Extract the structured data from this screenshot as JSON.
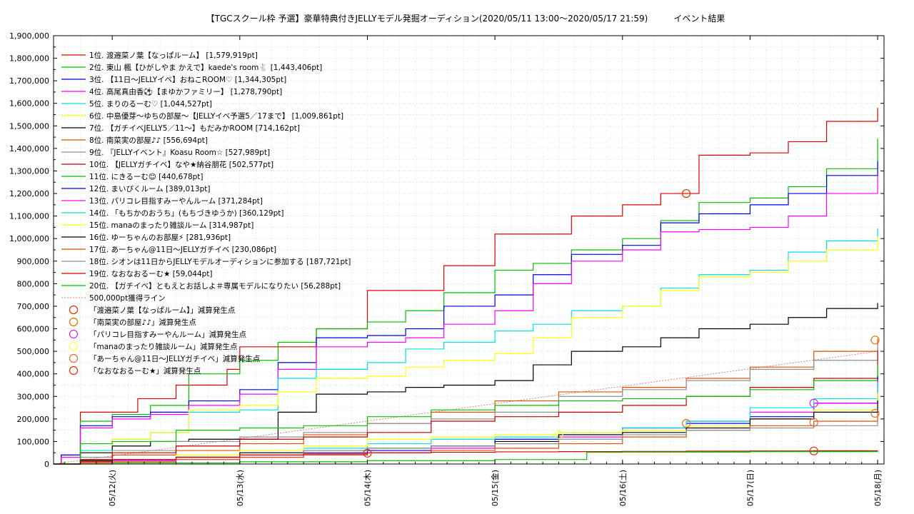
{
  "chart_data": {
    "type": "line",
    "title": "【TGCスクール枠 予選】豪華特典付きJELLYモデル発掘オーディション(2020/05/11 13:00〜2020/05/17 21:59)　　　イベント結果",
    "xlabel": "",
    "ylabel": "",
    "x_tick_labels": [
      "05/12(火)",
      "05/13(水)",
      "05/14(木)",
      "05/15(金)",
      "05/16(土)",
      "05/17(日)",
      "05/18(月)"
    ],
    "x_ticks": [
      1,
      2,
      3,
      4,
      5,
      6,
      7
    ],
    "xlim": [
      0.54,
      7.05
    ],
    "ylim": [
      0,
      1900000
    ],
    "y_tick_labels": [
      "0",
      "100,000",
      "200,000",
      "300,000",
      "400,000",
      "500,000",
      "600,000",
      "700,000",
      "800,000",
      "900,000",
      "1,000,000",
      "1,100,000",
      "1,200,000",
      "1,300,000",
      "1,400,000",
      "1,500,000",
      "1,600,000",
      "1,700,000",
      "1,800,000",
      "1,900,000"
    ],
    "grid": true,
    "legend_position": "top-left",
    "series": [
      {
        "name": "1位. 渡邉菜ノ葉【なっぱルーム】 [1,579,919pt]",
        "color": "#e00000",
        "x": [
          0.54,
          0.6,
          0.75,
          1.0,
          1.2,
          1.5,
          1.9,
          2.0,
          2.3,
          2.6,
          3.0,
          3.3,
          3.6,
          4.0,
          4.3,
          4.6,
          5.0,
          5.3,
          5.6,
          6.0,
          6.3,
          6.6,
          7.0
        ],
        "y": [
          0,
          40000,
          230000,
          230000,
          290000,
          350000,
          420000,
          520000,
          520000,
          600000,
          770000,
          770000,
          880000,
          1020000,
          1020000,
          1100000,
          1150000,
          1200000,
          1370000,
          1380000,
          1430000,
          1520000,
          1579919
        ]
      },
      {
        "name": "2位. 東山 楓【ひがしやま かえで】kaede's room🐇 [1,443,406pt]",
        "color": "#00c000",
        "x": [
          0.54,
          0.6,
          0.75,
          1.0,
          1.3,
          1.6,
          2.0,
          2.3,
          2.6,
          3.0,
          3.3,
          3.6,
          4.0,
          4.3,
          4.6,
          5.0,
          5.3,
          5.6,
          6.0,
          6.3,
          6.6,
          7.0
        ],
        "y": [
          0,
          30000,
          190000,
          220000,
          260000,
          400000,
          460000,
          540000,
          600000,
          630000,
          680000,
          760000,
          860000,
          890000,
          950000,
          1000000,
          1080000,
          1160000,
          1180000,
          1230000,
          1310000,
          1443406
        ]
      },
      {
        "name": "3位. 【11日〜JELLYイベ】おねこROOM♡ [1,344,305pt]",
        "color": "#0000e0",
        "x": [
          0.54,
          0.6,
          0.75,
          1.0,
          1.3,
          1.6,
          2.0,
          2.3,
          2.6,
          3.0,
          3.3,
          3.6,
          4.0,
          4.3,
          4.6,
          5.0,
          5.3,
          5.6,
          6.0,
          6.3,
          6.6,
          7.0
        ],
        "y": [
          0,
          40000,
          170000,
          210000,
          230000,
          280000,
          330000,
          450000,
          560000,
          570000,
          600000,
          700000,
          750000,
          840000,
          930000,
          970000,
          1070000,
          1110000,
          1150000,
          1200000,
          1280000,
          1344305
        ]
      },
      {
        "name": "4位. 高尾真由香⚽【まゆかファミリー】 [1,278,790pt]",
        "color": "#ff00ff",
        "x": [
          0.54,
          0.6,
          0.75,
          1.0,
          1.3,
          1.6,
          2.0,
          2.3,
          2.6,
          3.0,
          3.3,
          3.6,
          4.0,
          4.3,
          4.6,
          5.0,
          5.3,
          5.6,
          6.0,
          6.3,
          6.6,
          7.0
        ],
        "y": [
          0,
          30000,
          160000,
          200000,
          220000,
          260000,
          310000,
          420000,
          520000,
          540000,
          560000,
          620000,
          680000,
          800000,
          900000,
          950000,
          1030000,
          1040000,
          1050000,
          1100000,
          1200000,
          1278790
        ]
      },
      {
        "name": "5位. まりのるーむ♡ [1,044,527pt]",
        "color": "#00e0e0",
        "x": [
          0.54,
          0.75,
          1.0,
          1.3,
          1.6,
          2.0,
          2.3,
          2.6,
          3.0,
          3.3,
          3.6,
          4.0,
          4.3,
          4.6,
          5.0,
          5.3,
          5.6,
          6.0,
          6.3,
          6.6,
          7.0
        ],
        "y": [
          0,
          60000,
          110000,
          140000,
          230000,
          240000,
          380000,
          420000,
          450000,
          510000,
          540000,
          590000,
          620000,
          680000,
          700000,
          780000,
          840000,
          860000,
          940000,
          990000,
          1044527
        ]
      },
      {
        "name": "6位. 中島優芽〜ゆちの部屋〜【JELLYイベ予選5／17まで】 [1,009,861pt]",
        "color": "#ffff00",
        "x": [
          0.54,
          0.75,
          1.0,
          1.3,
          1.6,
          2.0,
          2.3,
          2.6,
          3.0,
          3.3,
          3.6,
          4.0,
          4.3,
          4.6,
          5.0,
          5.3,
          5.6,
          6.0,
          6.3,
          6.6,
          7.0
        ],
        "y": [
          0,
          50000,
          110000,
          140000,
          240000,
          260000,
          320000,
          380000,
          390000,
          430000,
          460000,
          490000,
          560000,
          650000,
          700000,
          770000,
          830000,
          850000,
          900000,
          950000,
          1009861
        ]
      },
      {
        "name": "7位. 【ガチイベJELLY5／11〜】もだみかROOM [714,162pt]",
        "color": "#000000",
        "x": [
          0.54,
          0.75,
          1.0,
          1.3,
          1.6,
          2.0,
          2.3,
          2.6,
          3.0,
          3.3,
          3.6,
          4.0,
          4.3,
          4.6,
          5.0,
          5.3,
          5.6,
          6.0,
          6.3,
          6.6,
          7.0
        ],
        "y": [
          0,
          50000,
          80000,
          100000,
          110000,
          110000,
          230000,
          310000,
          320000,
          340000,
          350000,
          370000,
          440000,
          500000,
          520000,
          560000,
          600000,
          620000,
          650000,
          690000,
          714162
        ]
      },
      {
        "name": "8位. 南菜実の部屋♪♪ [556,694pt]",
        "color": "#e05000",
        "x": [
          0.54,
          0.75,
          1.0,
          1.5,
          2.0,
          2.5,
          3.0,
          3.5,
          4.0,
          4.5,
          5.0,
          5.5,
          6.0,
          6.5,
          7.0
        ],
        "y": [
          0,
          20000,
          40000,
          60000,
          90000,
          130000,
          180000,
          230000,
          280000,
          320000,
          340000,
          380000,
          430000,
          500000,
          556694
        ]
      },
      {
        "name": "9位. 『JELLYイベント』Koasu Room☆ [527,989pt]",
        "color": "#909090",
        "x": [
          0.54,
          0.75,
          1.0,
          1.5,
          2.0,
          2.5,
          3.0,
          3.5,
          4.0,
          4.5,
          5.0,
          5.5,
          6.0,
          6.5,
          7.0
        ],
        "y": [
          0,
          30000,
          60000,
          100000,
          120000,
          140000,
          180000,
          200000,
          230000,
          300000,
          330000,
          370000,
          420000,
          460000,
          527989
        ]
      },
      {
        "name": "10位. 【JELLYガチイベ】なや★納谷朋花 [502,577pt]",
        "color": "#c00000",
        "x": [
          0.54,
          0.75,
          1.0,
          1.5,
          2.0,
          2.5,
          3.0,
          3.5,
          4.0,
          4.5,
          5.0,
          5.5,
          6.0,
          6.5,
          7.0
        ],
        "y": [
          0,
          20000,
          50000,
          80000,
          110000,
          120000,
          140000,
          190000,
          210000,
          230000,
          260000,
          300000,
          340000,
          380000,
          502577
        ]
      },
      {
        "name": "11位. にきるーむ😊 [440,678pt]",
        "color": "#00c000",
        "x": [
          0.54,
          0.75,
          1.0,
          1.5,
          2.0,
          2.5,
          3.0,
          3.5,
          4.0,
          4.5,
          5.0,
          5.5,
          6.0,
          6.5,
          7.0
        ],
        "y": [
          0,
          90000,
          100000,
          150000,
          160000,
          170000,
          210000,
          240000,
          260000,
          280000,
          290000,
          300000,
          330000,
          370000,
          440678
        ]
      },
      {
        "name": "12位. まいぴくルーム [389,013pt]",
        "color": "#0000e0",
        "x": [
          0.54,
          0.75,
          1.0,
          1.5,
          2.0,
          2.5,
          3.0,
          3.5,
          4.0,
          4.5,
          5.0,
          5.5,
          6.0,
          6.5,
          7.0
        ],
        "y": [
          0,
          10000,
          20000,
          30000,
          40000,
          50000,
          60000,
          80000,
          110000,
          130000,
          160000,
          180000,
          210000,
          270000,
          389013
        ]
      },
      {
        "name": "13位. パリコレ目指すみーやんルーム [371,284pt]",
        "color": "#ff00ff",
        "x": [
          0.54,
          0.75,
          1.0,
          1.5,
          2.0,
          2.5,
          3.0,
          3.5,
          4.0,
          4.5,
          5.0,
          5.5,
          6.0,
          6.5,
          7.0
        ],
        "y": [
          0,
          10000,
          15000,
          20000,
          30000,
          40000,
          50000,
          70000,
          90000,
          120000,
          160000,
          190000,
          230000,
          270000,
          371284
        ]
      },
      {
        "name": "14位. 「もちかのおうち」(もちづきゆうか) [360,129pt]",
        "color": "#00e0e0",
        "x": [
          0.54,
          0.75,
          1.0,
          1.5,
          2.0,
          2.5,
          3.0,
          3.5,
          4.0,
          4.5,
          5.0,
          5.5,
          6.0,
          6.5,
          7.0
        ],
        "y": [
          0,
          10000,
          20000,
          30000,
          50000,
          70000,
          90000,
          110000,
          120000,
          140000,
          160000,
          190000,
          250000,
          290000,
          360129
        ]
      },
      {
        "name": "15位. manaのまったり雑談ルーム [314,987pt]",
        "color": "#ffff00",
        "x": [
          0.54,
          0.75,
          1.0,
          1.5,
          2.0,
          2.5,
          3.0,
          3.5,
          4.0,
          4.5,
          5.0,
          5.5,
          6.0,
          6.5,
          7.0
        ],
        "y": [
          0,
          10000,
          20000,
          40000,
          60000,
          80000,
          110000,
          120000,
          130000,
          140000,
          150000,
          170000,
          200000,
          240000,
          314987
        ]
      },
      {
        "name": "16位. ゆーちゃんのお部屋⚡ [281,936pt]",
        "color": "#000000",
        "x": [
          0.54,
          0.75,
          1.0,
          1.5,
          2.0,
          2.5,
          3.0,
          3.5,
          4.0,
          4.5,
          5.0,
          5.5,
          6.0,
          6.5,
          7.0
        ],
        "y": [
          0,
          15000,
          20000,
          30000,
          50000,
          60000,
          70000,
          80000,
          100000,
          130000,
          140000,
          160000,
          200000,
          230000,
          281936
        ]
      },
      {
        "name": "17位. あーちゃん@11日〜JELLYガチイベ [230,086pt]",
        "color": "#e05000",
        "x": [
          0.54,
          0.75,
          1.0,
          1.5,
          2.0,
          2.5,
          3.0,
          3.5,
          4.0,
          4.5,
          5.0,
          5.5,
          6.0,
          6.5,
          7.0
        ],
        "y": [
          0,
          5000,
          10000,
          20000,
          30000,
          40000,
          50000,
          60000,
          70000,
          90000,
          120000,
          150000,
          170000,
          190000,
          230086
        ]
      },
      {
        "name": "18位. シオンは11日からJELLYモデルオーディションに参加する [187,721pt]",
        "color": "#909090",
        "x": [
          0.54,
          0.75,
          1.0,
          1.5,
          2.0,
          2.5,
          3.0,
          3.5,
          4.0,
          4.5,
          5.0,
          5.5,
          6.0,
          6.5,
          7.0
        ],
        "y": [
          0,
          10000,
          20000,
          30000,
          40000,
          60000,
          70000,
          80000,
          90000,
          110000,
          130000,
          150000,
          160000,
          170000,
          187721
        ]
      },
      {
        "name": "19位. なおなおるーむ★ [59,044pt]",
        "color": "#e00000",
        "x": [
          0.54,
          0.75,
          1.0,
          1.5,
          2.0,
          2.5,
          3.0,
          3.5,
          4.0,
          4.5,
          5.0,
          5.5,
          6.0,
          6.5,
          7.0
        ],
        "y": [
          0,
          10000,
          20000,
          30000,
          40000,
          45000,
          50000,
          52000,
          54000,
          55000,
          56000,
          57000,
          58000,
          58500,
          59044
        ]
      },
      {
        "name": "20位. 【ガチイベ】ともえとお話しよ＃専属モデルになりたい [56,288pt]",
        "color": "#00c000",
        "x": [
          0.54,
          1.0,
          2.0,
          3.0,
          4.0,
          4.7,
          4.72,
          5.0,
          6.0,
          7.0
        ],
        "y": [
          0,
          5000,
          10000,
          15000,
          20000,
          20000,
          52000,
          53000,
          55000,
          56288
        ]
      }
    ],
    "reference_line": {
      "name": "500,000pt獲得ライン",
      "color": "#e08080",
      "x": [
        0.54,
        7.0
      ],
      "y": [
        0,
        500000
      ]
    },
    "markers": [
      {
        "name": "「渡邉菜ノ葉【なっぱルーム】」減算発生点",
        "color": "#e03000",
        "points": [
          {
            "x": 5.5,
            "y": 1200000
          }
        ]
      },
      {
        "name": "「南菜実の部屋♪♪」減算発生点",
        "color": "#e07000",
        "points": [
          {
            "x": 6.98,
            "y": 550000
          }
        ]
      },
      {
        "name": "「パリコレ目指すみーやんルーム」減算発生点",
        "color": "#e020e0",
        "points": [
          {
            "x": 6.5,
            "y": 270000
          }
        ]
      },
      {
        "name": "「manaのまったり雑談ルーム」減算発生点",
        "color": "#ffff40",
        "points": [
          {
            "x": 4.5,
            "y": 130000
          }
        ]
      },
      {
        "name": "「あーちゃん@11日〜JELLYガチイベ」減算発生点",
        "color": "#e07030",
        "points": [
          {
            "x": 5.5,
            "y": 180000
          },
          {
            "x": 6.5,
            "y": 185000
          },
          {
            "x": 6.98,
            "y": 225000
          }
        ]
      },
      {
        "name": "「なおなおるーむ★」減算発生点",
        "color": "#e03000",
        "points": [
          {
            "x": 3.0,
            "y": 48000
          },
          {
            "x": 6.5,
            "y": 58000
          }
        ]
      }
    ]
  }
}
